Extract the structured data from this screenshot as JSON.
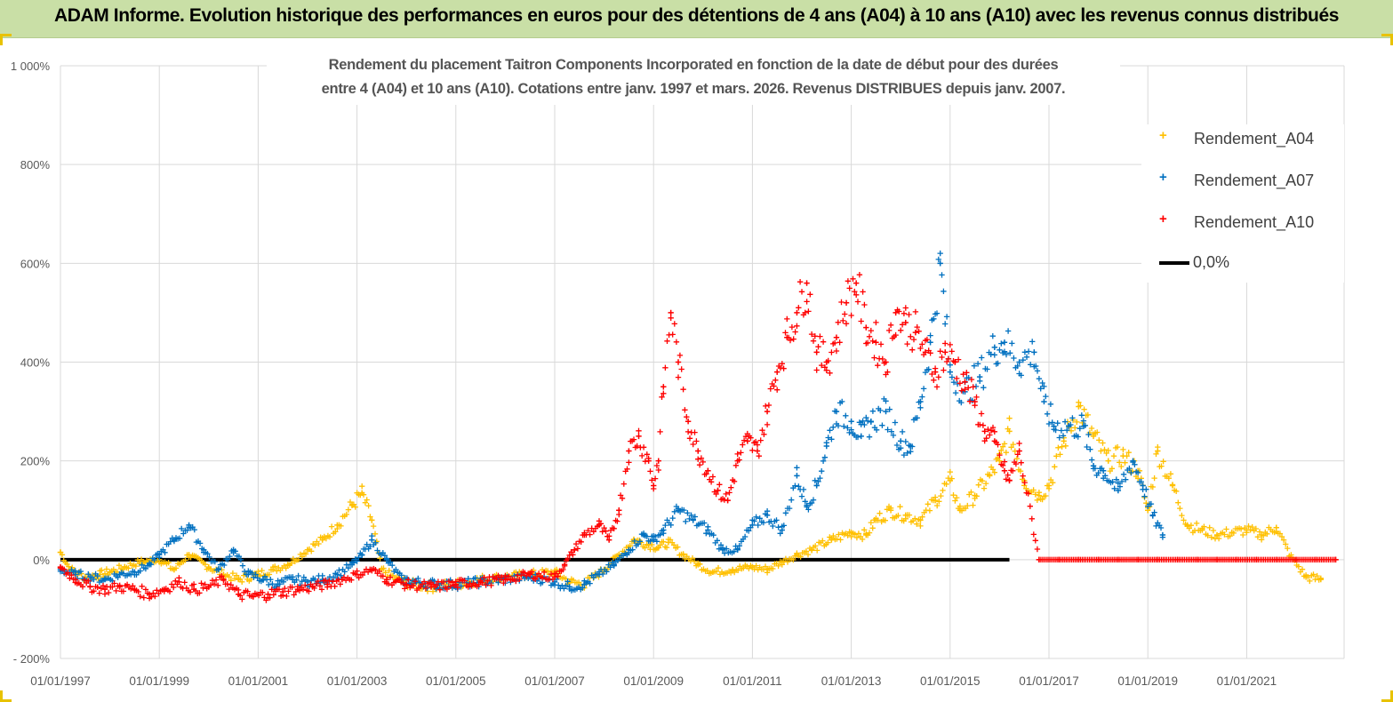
{
  "banner": {
    "title": "ADAM Informe. Evolution historique des performances en euros pour des détentions de 4 ans (A04) à 10 ans (A10) avec les revenus connus distribués"
  },
  "colors": {
    "banner_bg": "#c9dfa6",
    "corner_accent": "#e8c200",
    "gridline": "#d9d9d9",
    "axis_text": "#595959",
    "A04": "#ffc000",
    "A07": "#0070c0",
    "A10": "#ff0000",
    "zero_line": "#000000"
  },
  "chart_data": {
    "type": "scatter",
    "title_lines": [
      "Rendement du placement Taitron Components Incorporated en fonction de la date de début pour des durées",
      "entre 4 (A04) et 10 ans (A10).  Cotations entre janv. 1997 et mars. 2026. Revenus DISTRIBUES depuis janv. 2007."
    ],
    "xlabel": "",
    "ylabel": "",
    "x_range": [
      1997.0,
      2022.9
    ],
    "ylim": [
      -200,
      1000
    ],
    "y_ticks": [
      -200,
      0,
      200,
      400,
      600,
      800,
      1000
    ],
    "y_tick_labels": [
      "- 200%",
      "0%",
      "200%",
      "400%",
      "600%",
      "800%",
      "1 000%"
    ],
    "x_ticks": [
      1997,
      1999,
      2001,
      2003,
      2005,
      2007,
      2009,
      2011,
      2013,
      2015,
      2017,
      2019,
      2021
    ],
    "x_tick_labels": [
      "01/01/1997",
      "01/01/1999",
      "01/01/2001",
      "01/01/2003",
      "01/01/2005",
      "01/01/2007",
      "01/01/2009",
      "01/01/2011",
      "01/01/2013",
      "01/01/2015",
      "01/01/2017",
      "01/01/2019",
      "01/01/2021"
    ],
    "grid": true,
    "legend_position": "right",
    "marker": "+",
    "series": [
      {
        "name": "Rendement_A04",
        "color": "#ffc000",
        "x": [
          1997.0,
          1997.2,
          1997.5,
          1997.8,
          1998.0,
          1998.3,
          1998.6,
          1999.0,
          1999.3,
          1999.6,
          2000.0,
          2000.3,
          2000.6,
          2001.0,
          2001.3,
          2001.6,
          2002.0,
          2002.3,
          2002.6,
          2002.9,
          2003.1,
          2003.3,
          2003.5,
          2003.8,
          2004.1,
          2004.5,
          2005.0,
          2005.5,
          2006.0,
          2006.5,
          2007.0,
          2007.3,
          2007.6,
          2008.0,
          2008.3,
          2008.6,
          2008.9,
          2009.1,
          2009.3,
          2009.6,
          2009.9,
          2010.2,
          2010.6,
          2011.0,
          2011.3,
          2011.6,
          2011.9,
          2012.2,
          2012.6,
          2013.0,
          2013.3,
          2013.5,
          2013.8,
          2014.1,
          2014.4,
          2014.7,
          2015.0,
          2015.2,
          2015.5,
          2015.8,
          2016.0,
          2016.2,
          2016.5,
          2016.8,
          2017.0,
          2017.3,
          2017.6,
          2017.9,
          2018.2,
          2018.5,
          2018.8,
          2019.0,
          2019.2,
          2019.5,
          2019.8,
          2020.1,
          2020.4,
          2020.7,
          2021.0,
          2021.3,
          2021.6,
          2021.9,
          2022.2,
          2022.5
        ],
        "y": [
          15,
          -20,
          -35,
          -30,
          -25,
          -15,
          -5,
          0,
          -20,
          10,
          -15,
          -30,
          -40,
          -30,
          -20,
          -10,
          20,
          40,
          70,
          110,
          135,
          80,
          -20,
          -40,
          -50,
          -55,
          -50,
          -40,
          -35,
          -30,
          -25,
          -45,
          -50,
          -20,
          10,
          40,
          30,
          25,
          35,
          10,
          -10,
          -25,
          -20,
          -15,
          -20,
          -5,
          10,
          20,
          40,
          55,
          50,
          80,
          100,
          90,
          80,
          120,
          160,
          100,
          130,
          170,
          200,
          260,
          160,
          130,
          150,
          240,
          310,
          250,
          200,
          210,
          180,
          100,
          220,
          150,
          70,
          60,
          50,
          55,
          60,
          50,
          65,
          5,
          -35,
          -40
        ]
      },
      {
        "name": "Rendement_A07",
        "color": "#0070c0",
        "x": [
          1997.0,
          1997.3,
          1997.6,
          1997.9,
          1998.2,
          1998.5,
          1998.8,
          1999.0,
          1999.3,
          1999.6,
          1999.9,
          2000.2,
          2000.5,
          2000.8,
          2001.1,
          2001.4,
          2001.7,
          2002.0,
          2002.3,
          2002.6,
          2002.9,
          2003.1,
          2003.3,
          2003.6,
          2003.9,
          2004.2,
          2004.6,
          2005.0,
          2005.5,
          2006.0,
          2006.5,
          2007.0,
          2007.3,
          2007.6,
          2007.9,
          2008.2,
          2008.5,
          2008.8,
          2009.0,
          2009.2,
          2009.5,
          2009.8,
          2010.1,
          2010.4,
          2010.7,
          2011.0,
          2011.3,
          2011.6,
          2011.9,
          2012.1,
          2012.3,
          2012.5,
          2012.7,
          2013.0,
          2013.2,
          2013.4,
          2013.7,
          2014.0,
          2014.2,
          2014.4,
          2014.6,
          2014.8,
          2015.0,
          2015.3,
          2015.6,
          2015.9,
          2016.1,
          2016.4,
          2016.7,
          2016.9,
          2017.1,
          2017.4,
          2017.7,
          2017.9,
          2018.1,
          2018.4,
          2018.7,
          2018.9,
          2019.1,
          2019.3
        ],
        "y": [
          -20,
          -30,
          -35,
          -40,
          -30,
          -25,
          -10,
          10,
          40,
          70,
          20,
          -20,
          20,
          -30,
          -40,
          -50,
          -40,
          -45,
          -40,
          -30,
          -10,
          10,
          40,
          0,
          -40,
          -45,
          -50,
          -50,
          -45,
          -40,
          -35,
          -45,
          -55,
          -50,
          -30,
          -10,
          20,
          50,
          40,
          60,
          100,
          80,
          60,
          20,
          20,
          70,
          90,
          60,
          170,
          110,
          150,
          230,
          300,
          280,
          250,
          280,
          300,
          240,
          230,
          320,
          440,
          600,
          380,
          340,
          370,
          430,
          440,
          400,
          420,
          320,
          270,
          270,
          270,
          190,
          180,
          140,
          200,
          150,
          90,
          50
        ]
      },
      {
        "name": "Rendement_A10",
        "color": "#ff0000",
        "x": [
          1997.0,
          1997.3,
          1997.6,
          1997.9,
          1998.2,
          1998.5,
          1998.8,
          1999.1,
          1999.4,
          1999.7,
          2000.0,
          2000.3,
          2000.6,
          2000.9,
          2001.2,
          2001.5,
          2001.8,
          2002.1,
          2002.4,
          2002.7,
          2003.0,
          2003.3,
          2003.6,
          2004.0,
          2004.5,
          2005.0,
          2005.5,
          2006.0,
          2006.5,
          2007.0,
          2007.2,
          2007.4,
          2007.6,
          2007.9,
          2008.1,
          2008.3,
          2008.5,
          2008.7,
          2008.9,
          2009.0,
          2009.1,
          2009.2,
          2009.35,
          2009.5,
          2009.7,
          2009.9,
          2010.1,
          2010.3,
          2010.5,
          2010.7,
          2010.9,
          2011.1,
          2011.3,
          2011.5,
          2011.7,
          2011.9,
          2012.1,
          2012.3,
          2012.5,
          2012.7,
          2012.9,
          2013.1,
          2013.3,
          2013.5,
          2013.7,
          2013.9,
          2014.1,
          2014.3,
          2014.5,
          2014.7,
          2014.9,
          2015.1,
          2015.3,
          2015.5,
          2015.7,
          2015.9,
          2016.1,
          2016.2,
          2016.4,
          2016.8,
          2017.2,
          2017.6,
          2018.0,
          2018.4,
          2018.8,
          2019.2,
          2019.6,
          2020.0,
          2020.4,
          2020.8,
          2021.2,
          2021.6,
          2022.0,
          2022.4,
          2022.8
        ],
        "y": [
          -15,
          -40,
          -55,
          -60,
          -55,
          -60,
          -70,
          -60,
          -45,
          -60,
          -55,
          -40,
          -70,
          -75,
          -70,
          -65,
          -60,
          -55,
          -50,
          -40,
          -30,
          -20,
          -40,
          -50,
          -55,
          -50,
          -45,
          -40,
          -30,
          -35,
          -10,
          20,
          50,
          70,
          40,
          100,
          220,
          250,
          200,
          150,
          200,
          350,
          500,
          400,
          280,
          220,
          180,
          140,
          120,
          200,
          240,
          220,
          300,
          380,
          450,
          500,
          560,
          420,
          400,
          450,
          520,
          560,
          470,
          440,
          400,
          500,
          480,
          460,
          420,
          380,
          420,
          400,
          360,
          320,
          260,
          240,
          180,
          160,
          220,
          0,
          0,
          0,
          0,
          0,
          0,
          0,
          0,
          0,
          0,
          0,
          0,
          0,
          0,
          0,
          0
        ]
      }
    ],
    "legend": [
      {
        "label": "Rendement_A04",
        "color": "#ffc000",
        "kind": "marker"
      },
      {
        "label": "Rendement_A07",
        "color": "#0070c0",
        "kind": "marker"
      },
      {
        "label": "Rendement_A10",
        "color": "#ff0000",
        "kind": "marker"
      },
      {
        "label": "0,0%",
        "color": "#000000",
        "kind": "line"
      }
    ],
    "reference_line": {
      "label": "0,0%",
      "y": 0,
      "x_range": [
        1997.0,
        2016.2
      ]
    }
  }
}
